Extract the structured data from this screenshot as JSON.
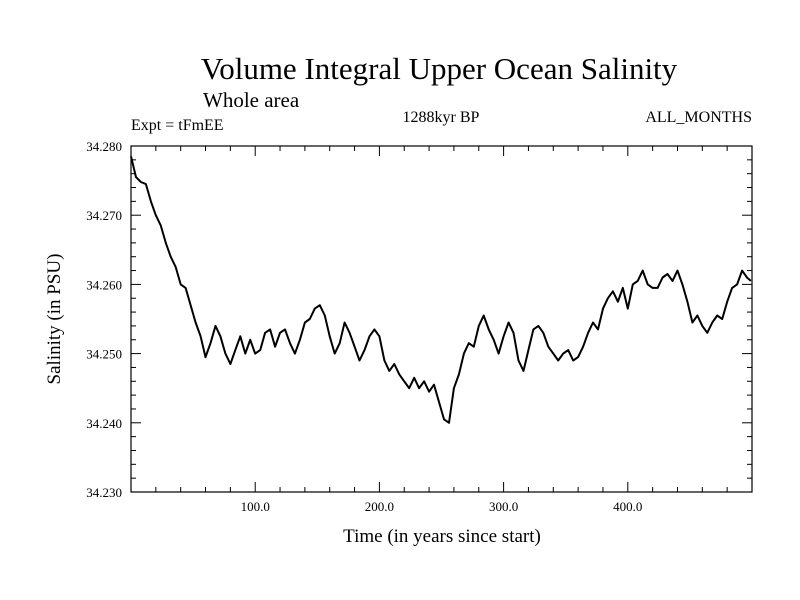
{
  "header": {
    "title": "Volume Integral Upper Ocean Salinity",
    "subtitle": "Whole area",
    "experiment": "Expt = tFmEE",
    "period": "1288kyr BP",
    "months": "ALL_MONTHS"
  },
  "chart_data": {
    "type": "line",
    "title": "Volume Integral Upper Ocean Salinity",
    "subtitle": "Whole area",
    "xlabel": "Time (in years since start)",
    "ylabel": "Salinity (in PSU)",
    "xlim": [
      0,
      500
    ],
    "ylim": [
      34.23,
      34.28
    ],
    "grid": false,
    "x_ticks": [
      100,
      200,
      300,
      400
    ],
    "x_tick_labels": [
      "100.0",
      "200.0",
      "300.0",
      "400.0"
    ],
    "y_ticks": [
      34.23,
      34.24,
      34.25,
      34.26,
      34.27,
      34.28
    ],
    "y_tick_labels": [
      "34.230",
      "34.240",
      "34.250",
      "34.260",
      "34.270",
      "34.280"
    ],
    "series": [
      {
        "name": "Salinity",
        "color": "#000000",
        "x": [
          0,
          4,
          8,
          12,
          16,
          20,
          24,
          28,
          32,
          36,
          40,
          44,
          48,
          52,
          56,
          60,
          64,
          68,
          72,
          76,
          80,
          84,
          88,
          92,
          96,
          100,
          104,
          108,
          112,
          116,
          120,
          124,
          128,
          132,
          136,
          140,
          144,
          148,
          152,
          156,
          160,
          164,
          168,
          172,
          176,
          180,
          184,
          188,
          192,
          196,
          200,
          204,
          208,
          212,
          216,
          220,
          224,
          228,
          232,
          236,
          240,
          244,
          248,
          252,
          256,
          260,
          264,
          268,
          272,
          276,
          280,
          284,
          288,
          292,
          296,
          300,
          304,
          308,
          312,
          316,
          320,
          324,
          328,
          332,
          336,
          340,
          344,
          348,
          352,
          356,
          360,
          364,
          368,
          372,
          376,
          380,
          384,
          388,
          392,
          396,
          400,
          404,
          408,
          412,
          416,
          420,
          424,
          428,
          432,
          436,
          440,
          444,
          448,
          452,
          456,
          460,
          464,
          468,
          472,
          476,
          480,
          484,
          488,
          492,
          496,
          499
        ],
        "values": [
          34.2785,
          34.2755,
          34.2748,
          34.2745,
          34.272,
          34.27,
          34.2685,
          34.266,
          34.264,
          34.2625,
          34.26,
          34.2595,
          34.257,
          34.2545,
          34.2525,
          34.2495,
          34.2515,
          34.254,
          34.2525,
          34.25,
          34.2485,
          34.2505,
          34.2525,
          34.25,
          34.252,
          34.25,
          34.2505,
          34.253,
          34.2535,
          34.251,
          34.253,
          34.2535,
          34.2515,
          34.25,
          34.252,
          34.2545,
          34.255,
          34.2565,
          34.257,
          34.2555,
          34.2525,
          34.25,
          34.2515,
          34.2545,
          34.253,
          34.251,
          34.249,
          34.2505,
          34.2525,
          34.2535,
          34.2525,
          34.249,
          34.2475,
          34.2485,
          34.247,
          34.246,
          34.245,
          34.2465,
          34.245,
          34.246,
          34.2445,
          34.2455,
          34.243,
          34.2405,
          34.24,
          34.245,
          34.247,
          34.25,
          34.2515,
          34.251,
          34.254,
          34.2555,
          34.2535,
          34.252,
          34.25,
          34.2525,
          34.2545,
          34.253,
          34.249,
          34.2475,
          34.2505,
          34.2535,
          34.254,
          34.253,
          34.251,
          34.25,
          34.249,
          34.25,
          34.2505,
          34.249,
          34.2495,
          34.251,
          34.253,
          34.2545,
          34.2535,
          34.2565,
          34.258,
          34.259,
          34.2575,
          34.2595,
          34.2565,
          34.26,
          34.2605,
          34.262,
          34.26,
          34.2595,
          34.2595,
          34.261,
          34.2615,
          34.2605,
          34.262,
          34.26,
          34.2575,
          34.2545,
          34.2555,
          34.254,
          34.253,
          34.2545,
          34.2555,
          34.255,
          34.2575,
          34.2595,
          34.26,
          34.262,
          34.261,
          34.2605
        ]
      }
    ]
  }
}
